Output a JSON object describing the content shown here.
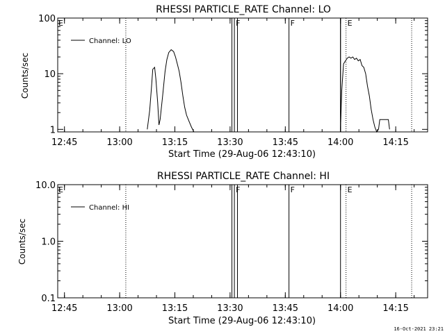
{
  "stamp": "16-Oct-2021 23:21",
  "chart_data": [
    {
      "type": "line",
      "title": "RHESSI PARTICLE_RATE Channel: LO",
      "xlabel": "Start Time (29-Aug-06 12:43:10)",
      "ylabel": "Counts/sec",
      "yscale": "log",
      "ylim": [
        0.9,
        100
      ],
      "yticks": [
        "1",
        "10",
        "100"
      ],
      "xlim": [
        "12:43:10",
        "14:23:40"
      ],
      "xticks": [
        "12:45",
        "13:00",
        "13:15",
        "13:30",
        "13:45",
        "14:00",
        "14:15"
      ],
      "legend_label": "Channel: LO",
      "legend_position": "top-left",
      "grid": false,
      "x": [
        "13:07:30",
        "13:08:10",
        "13:08:40",
        "13:09:00",
        "13:09:30",
        "13:09:50",
        "13:10:20",
        "13:10:40",
        "13:11:00",
        "13:11:40",
        "13:12:20",
        "13:12:50",
        "13:13:20",
        "13:14:00",
        "13:14:40",
        "13:15:10",
        "13:15:40",
        "13:16:10",
        "13:16:40",
        "13:17:10",
        "13:17:40",
        "13:18:10",
        "13:18:50",
        "13:19:30",
        "13:20:10"
      ],
      "y": [
        1,
        2.2,
        6,
        12,
        13,
        8,
        3,
        1.2,
        1.5,
        4,
        11,
        18,
        24,
        27,
        25,
        20,
        15,
        11,
        7,
        4,
        2.5,
        1.8,
        1.4,
        1.1,
        0.9
      ],
      "x2": [
        "14:00:00",
        "14:00:20",
        "14:00:50",
        "14:01:20",
        "14:01:50",
        "14:02:20",
        "14:02:50",
        "14:03:20",
        "14:03:50",
        "14:04:20",
        "14:04:50",
        "14:05:20",
        "14:05:50",
        "14:06:20",
        "14:06:50",
        "14:07:20",
        "14:07:50",
        "14:08:20",
        "14:08:50",
        "14:09:20",
        "14:09:50",
        "14:10:20",
        "14:10:40",
        "14:11:20",
        "14:12:10",
        "14:13:00",
        "14:13:20"
      ],
      "y2": [
        1,
        5,
        15,
        17,
        19,
        20,
        19,
        20,
        18,
        19,
        17,
        18,
        14,
        13,
        10,
        6,
        4,
        2.3,
        1.5,
        1.1,
        0.9,
        1,
        1.5,
        1.5,
        1.5,
        1.5,
        1
      ],
      "segment_markers": [
        {
          "label": "E",
          "time": "12:43:10"
        },
        {
          "label": "F",
          "time": "13:31:10"
        },
        {
          "label": "F",
          "time": "13:46:00"
        },
        {
          "label": "E",
          "time": "14:01:30"
        }
      ],
      "solid_lines": [
        "13:30:30",
        "13:31:10",
        "13:32:00",
        "13:46:00",
        "13:60:00",
        "14:00:00"
      ],
      "dotted_lines": [
        "13:01:40",
        "14:01:30",
        "14:19:20"
      ]
    },
    {
      "type": "line",
      "title": "RHESSI PARTICLE_RATE Channel: HI",
      "xlabel": "Start Time (29-Aug-06 12:43:10)",
      "ylabel": "Counts/sec",
      "yscale": "log",
      "ylim": [
        0.1,
        10
      ],
      "yticks": [
        "0.1",
        "1.0",
        "10.0"
      ],
      "xlim": [
        "12:43:10",
        "14:23:40"
      ],
      "xticks": [
        "12:45",
        "13:00",
        "13:15",
        "13:30",
        "13:45",
        "14:00",
        "14:15"
      ],
      "legend_label": "Channel: HI",
      "legend_position": "top-left",
      "grid": false,
      "x": [],
      "y": [],
      "segment_markers": [
        {
          "label": "E",
          "time": "12:43:10"
        },
        {
          "label": "F",
          "time": "13:31:10"
        },
        {
          "label": "F",
          "time": "13:46:00"
        },
        {
          "label": "E",
          "time": "14:01:30"
        }
      ],
      "solid_lines": [
        "13:30:30",
        "13:31:10",
        "13:32:00",
        "13:46:00",
        "14:00:00"
      ],
      "dotted_lines": [
        "13:01:40",
        "14:01:30",
        "14:19:20"
      ]
    }
  ]
}
